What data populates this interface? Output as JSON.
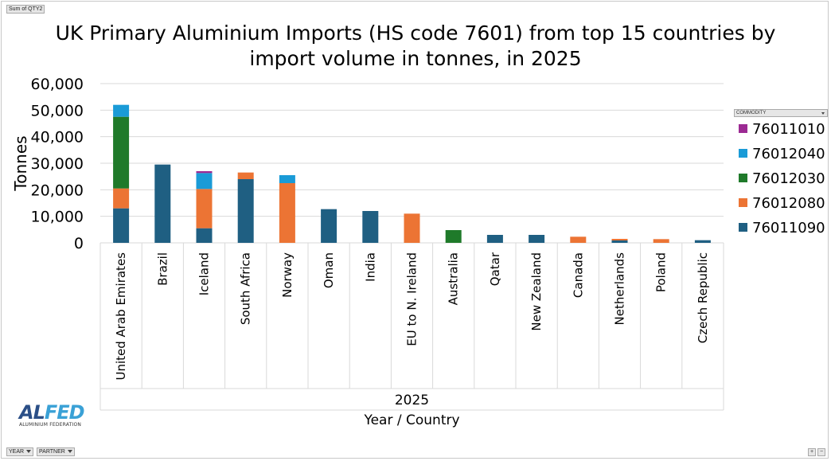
{
  "pivot": {
    "value_field": "Sum of QTY2",
    "filter_year": "YEAR",
    "filter_partner": "PARTNER"
  },
  "legend_field": "COMMODITY",
  "logo": {
    "part1": "AL",
    "part2": "FED",
    "subtitle": "ALUMINIUM FEDERATION"
  },
  "chart_data": {
    "type": "bar",
    "stacked": true,
    "title": "UK Primary Aluminium Imports (HS code 7601) from top 15 countries by import volume in tonnes, in 2025",
    "title_lines": [
      "UK Primary Aluminium Imports (HS code 7601) from top 15 countries by",
      "import volume in tonnes, in 2025"
    ],
    "ylabel": "Tonnes",
    "xlabel": "Year / Country",
    "x_group_label": "2025",
    "ylim": [
      0,
      60000
    ],
    "yticks": [
      0,
      10000,
      20000,
      30000,
      40000,
      50000,
      60000
    ],
    "ytick_labels": [
      "0",
      "10,000",
      "20,000",
      "30,000",
      "40,000",
      "50,000",
      "60,000"
    ],
    "gridlines": true,
    "legend_position": "right",
    "categories": [
      "United Arab Emirates",
      "Brazil",
      "Iceland",
      "South Africa",
      "Norway",
      "Oman",
      "India",
      "EU to N. Ireland",
      "Australia",
      "Qatar",
      "New Zealand",
      "Canada",
      "Netherlands",
      "Poland",
      "Czech Republic"
    ],
    "series": [
      {
        "name": "76011090",
        "color": "#1f5f82",
        "values": [
          13000,
          29500,
          5500,
          24000,
          0,
          12700,
          12000,
          0,
          0,
          3000,
          3000,
          0,
          900,
          0,
          1000
        ]
      },
      {
        "name": "76012080",
        "color": "#ec7434",
        "values": [
          7500,
          0,
          14800,
          2500,
          22500,
          0,
          0,
          11000,
          0,
          0,
          0,
          2300,
          600,
          1400,
          0
        ]
      },
      {
        "name": "76012030",
        "color": "#1f7a2a",
        "values": [
          27000,
          0,
          0,
          0,
          0,
          0,
          0,
          0,
          4800,
          0,
          0,
          0,
          0,
          0,
          0
        ]
      },
      {
        "name": "76012040",
        "color": "#1a9bd7",
        "values": [
          4500,
          0,
          6000,
          0,
          3000,
          0,
          0,
          0,
          0,
          0,
          0,
          0,
          0,
          0,
          0
        ]
      },
      {
        "name": "76011010",
        "color": "#9c2a93",
        "values": [
          0,
          0,
          700,
          0,
          0,
          0,
          0,
          0,
          0,
          0,
          0,
          0,
          0,
          0,
          0
        ]
      }
    ],
    "legend_order": [
      "76011010",
      "76012040",
      "76012030",
      "76012080",
      "76011090"
    ]
  }
}
